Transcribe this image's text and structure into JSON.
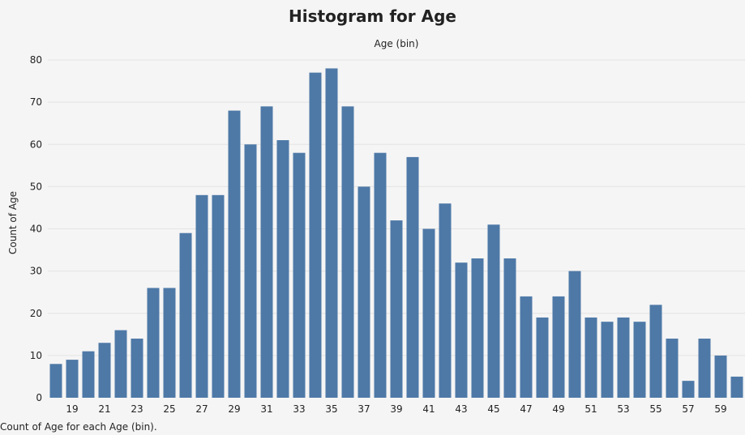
{
  "chart_data": {
    "type": "bar",
    "title": "Histogram for Age",
    "xlabel": "Age (bin)",
    "ylabel": "Count of Age",
    "caption": "Count of Age for each Age (bin).",
    "ylim": [
      0,
      80
    ],
    "yticks": [
      0,
      10,
      20,
      30,
      40,
      50,
      60,
      70,
      80
    ],
    "bar_color": "#4e79a7",
    "grid": true,
    "categories": [
      18,
      19,
      20,
      21,
      22,
      23,
      24,
      25,
      26,
      27,
      28,
      29,
      30,
      31,
      32,
      33,
      34,
      35,
      36,
      37,
      38,
      39,
      40,
      41,
      42,
      43,
      44,
      45,
      46,
      47,
      48,
      49,
      50,
      51,
      52,
      53,
      54,
      55,
      56,
      57,
      58,
      59,
      60
    ],
    "x_tick_labels": [
      "19",
      "21",
      "23",
      "25",
      "27",
      "29",
      "31",
      "33",
      "35",
      "37",
      "39",
      "41",
      "43",
      "45",
      "47",
      "49",
      "51",
      "53",
      "55",
      "57",
      "59"
    ],
    "values": [
      8,
      9,
      11,
      13,
      16,
      14,
      26,
      26,
      39,
      48,
      48,
      68,
      60,
      69,
      61,
      58,
      77,
      78,
      69,
      50,
      58,
      42,
      57,
      40,
      46,
      32,
      33,
      41,
      33,
      24,
      19,
      24,
      30,
      19,
      18,
      19,
      18,
      22,
      14,
      4,
      14,
      10,
      5
    ]
  }
}
